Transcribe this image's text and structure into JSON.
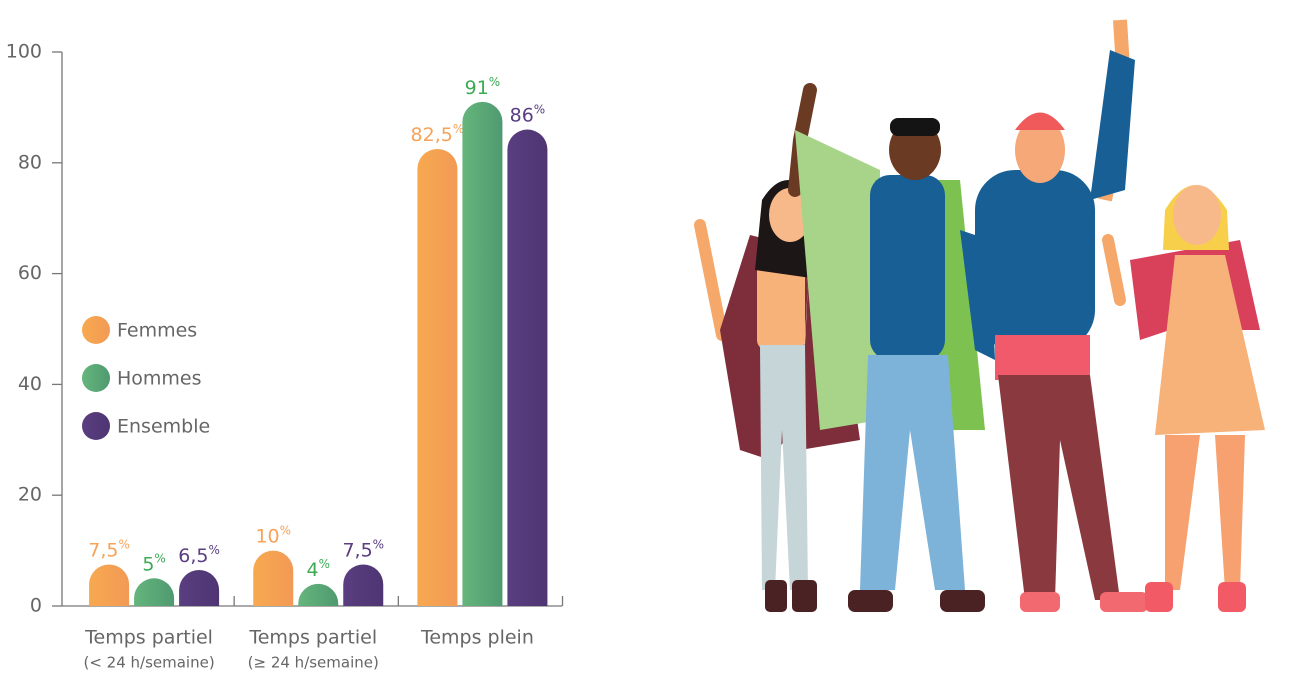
{
  "chart_data": {
    "type": "bar",
    "categories": [
      "Temps partiel",
      "Temps partiel",
      "Temps plein"
    ],
    "category_sublabels": [
      "(< 24 h/semaine)",
      "(≥ 24 h/semaine)",
      null
    ],
    "series": [
      {
        "name": "Femmes",
        "color": "#f6a04d",
        "label_color": "#f5a35a",
        "values": [
          7.5,
          10,
          82.5
        ],
        "value_labels": [
          "7,5%",
          "10%",
          "82,5%"
        ]
      },
      {
        "name": "Hommes",
        "color": "#5aae78",
        "label_color": "#3daa55",
        "values": [
          5,
          4,
          91
        ],
        "value_labels": [
          "5%",
          "4%",
          "91%"
        ]
      },
      {
        "name": "Ensemble",
        "color": "#553a7a",
        "label_color": "#5a3d82",
        "values": [
          6.5,
          7.5,
          86
        ],
        "value_labels": [
          "6,5%",
          "7,5%",
          "86%"
        ]
      }
    ],
    "ylim": [
      0,
      100
    ],
    "yticks": [
      0,
      20,
      40,
      60,
      80,
      100
    ],
    "grid": false
  }
}
